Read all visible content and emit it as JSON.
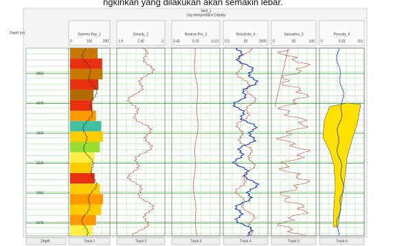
{
  "caption": "ngkinkan yang dilakukan akan semakin lebar.",
  "header": {
    "title": "Well_1",
    "subtitle": "Log Interpretation Display"
  },
  "depth": {
    "label": "Depth (m)",
    "marks": [
      "1850",
      "1875",
      "1900",
      "1925",
      "1950",
      "1975"
    ]
  },
  "tracks": [
    {
      "name": "Gamma Ray_1",
      "scale": [
        "0",
        "100",
        "200"
      ],
      "footer": "Track 1"
    },
    {
      "name": "Density_2",
      "scale": [
        "1.9",
        "2.45",
        "3"
      ],
      "footer": "Track 2"
    },
    {
      "name": "Neutron Por_3",
      "scale": [
        "0.45",
        "0.15",
        "-0.15"
      ],
      "footer": "Track 3"
    },
    {
      "name": "Resistivity_4",
      "scale": [
        "0.2",
        "20",
        "2000"
      ],
      "footer": "Track 4"
    },
    {
      "name": "Saturation_5",
      "scale": [
        "0",
        "50",
        "100"
      ],
      "footer": "Track 5"
    },
    {
      "name": "Porosity_6",
      "scale": [
        "0",
        "0.25",
        "0.5"
      ],
      "footer": "Track 6"
    }
  ],
  "footer_depth": "Depth"
}
